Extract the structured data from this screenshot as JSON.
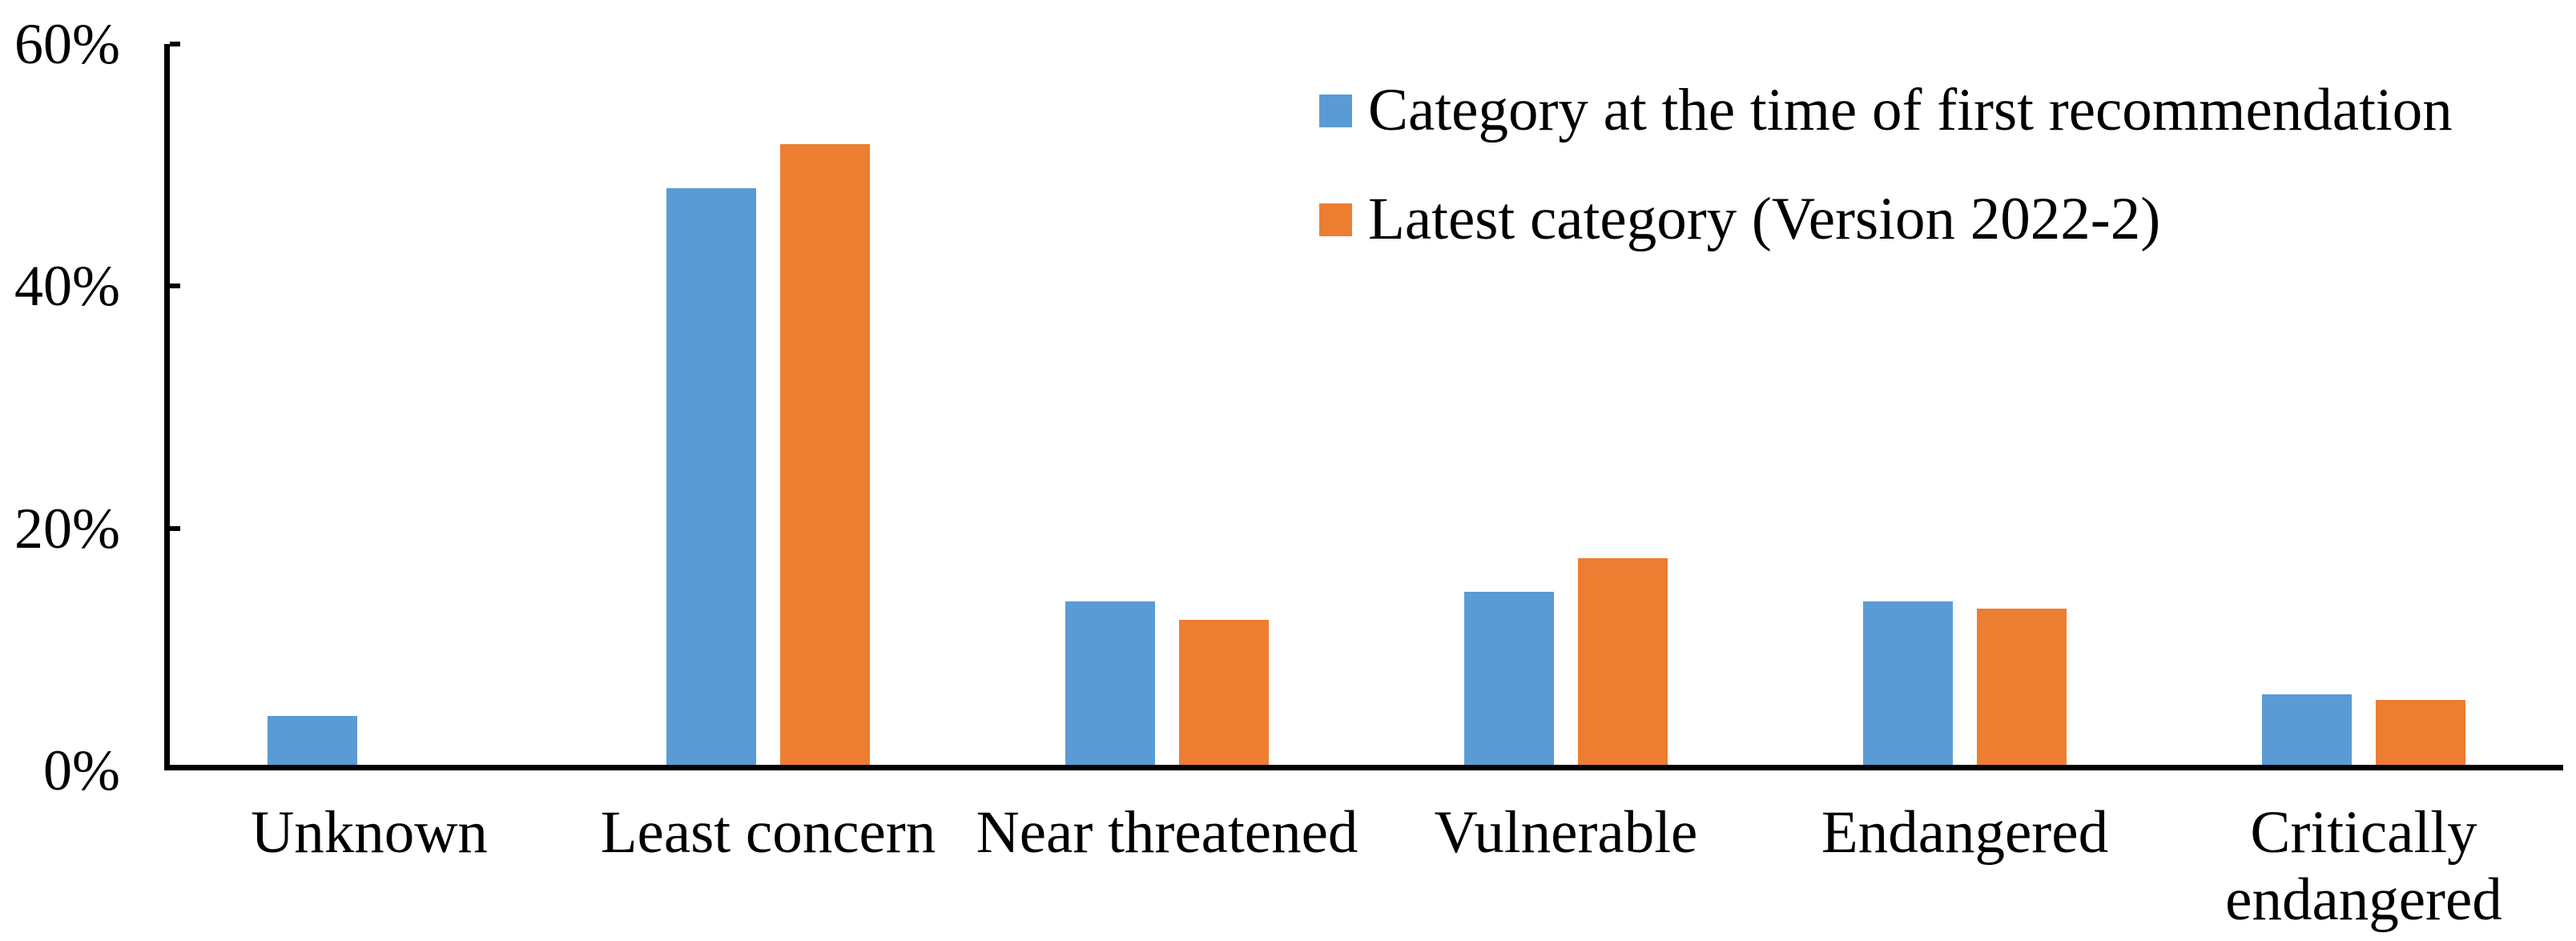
{
  "chart_data": {
    "type": "bar",
    "title": "",
    "categories": [
      "Unknown",
      "Least concern",
      "Near threatened",
      "Vulnerable",
      "Endangered",
      "Critically endangered"
    ],
    "series": [
      {
        "name": "Category at the time of first recommendation",
        "color": "#5B9BD5",
        "values": [
          4.1,
          48.0,
          13.6,
          14.4,
          13.6,
          5.9
        ]
      },
      {
        "name": "Latest category (Version 2022-2)",
        "color": "#ED7D31",
        "values": [
          0,
          51.7,
          12.1,
          17.2,
          13.0,
          5.4
        ]
      }
    ],
    "xlabel": "",
    "ylabel": "",
    "yticks": [
      "0%",
      "20%",
      "40%",
      "60%"
    ],
    "ytick_values": [
      0,
      20,
      40,
      60
    ],
    "ylim": [
      0,
      60
    ],
    "grid": false,
    "legend_position": "top-right",
    "colors": {
      "axis": "#000000",
      "text": "#000000",
      "background": "#FFFFFF"
    }
  }
}
